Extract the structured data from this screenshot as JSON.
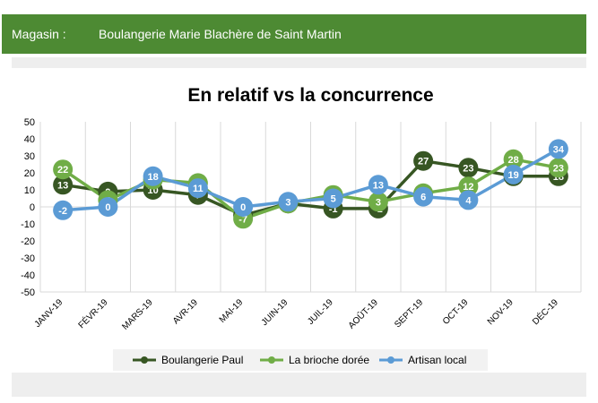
{
  "header": {
    "store_label": "Magasin :",
    "store_name": "Boulangerie Marie Blachère de Saint Martin"
  },
  "colors": {
    "header_bg": "#4d8a33",
    "boulangerie_paul": "#375623",
    "la_brioche_doree": "#70ad47",
    "artisan_local": "#5b9bd5"
  },
  "chart_data": {
    "type": "line",
    "title": "En relatif vs la concurrence",
    "categories": [
      "JANV-19",
      "FÉVR-19",
      "MARS-19",
      "AVR-19",
      "MAI-19",
      "JUIN-19",
      "JUIL-19",
      "AOÛT-19",
      "SEPT-19",
      "OCT-19",
      "NOV-19",
      "DÉC-19"
    ],
    "ylim": [
      -50,
      50
    ],
    "yticks": [
      50,
      40,
      30,
      20,
      10,
      0,
      -10,
      -20,
      -30,
      -40,
      -50
    ],
    "grid": "vertical",
    "legend_position": "bottom",
    "series": [
      {
        "name": "Boulangerie Paul",
        "color": "#375623",
        "values": [
          13,
          9,
          10,
          7,
          -5,
          2,
          -1,
          -1,
          27,
          23,
          18,
          18
        ]
      },
      {
        "name": "La brioche dorée",
        "color": "#70ad47",
        "values": [
          22,
          4,
          16,
          14,
          -7,
          2,
          7,
          3,
          8,
          12,
          28,
          23
        ]
      },
      {
        "name": "Artisan local",
        "color": "#5b9bd5",
        "values": [
          -2,
          0,
          18,
          11,
          0,
          3,
          5,
          13,
          6,
          4,
          19,
          34
        ]
      }
    ]
  }
}
